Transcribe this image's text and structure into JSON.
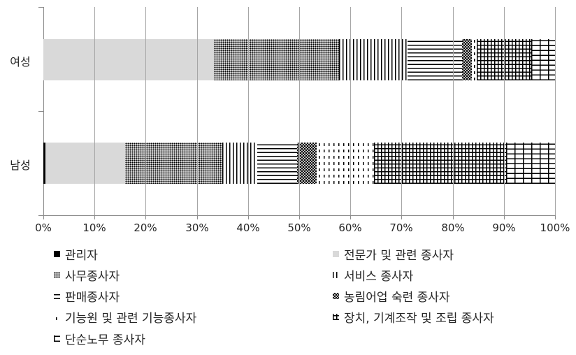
{
  "chart_data": {
    "type": "bar",
    "orientation": "horizontal",
    "stacked": "percent",
    "categories": [
      "여성",
      "남성"
    ],
    "xlabel": "",
    "ylabel": "",
    "xlim": [
      0,
      100
    ],
    "x_ticks": [
      "0%",
      "10%",
      "20%",
      "30%",
      "40%",
      "50%",
      "60%",
      "70%",
      "80%",
      "90%",
      "100%"
    ],
    "grid": true,
    "legend_position": "bottom",
    "series": [
      {
        "name": "관리자",
        "pattern": "solid-black",
        "values": [
          0.0,
          0.4
        ]
      },
      {
        "name": "전문가 및 관련 종사자",
        "pattern": "solid-gray",
        "values": [
          33.3,
          15.6
        ]
      },
      {
        "name": "사무종사자",
        "pattern": "dots",
        "values": [
          24.5,
          19.0
        ]
      },
      {
        "name": "서비스 종사자",
        "pattern": "vertical-lines",
        "values": [
          13.4,
          6.8
        ]
      },
      {
        "name": "판매종사자",
        "pattern": "horizontal-lines",
        "values": [
          10.6,
          7.8
        ]
      },
      {
        "name": "농림어업 숙련 종사자",
        "pattern": "checker",
        "values": [
          1.9,
          3.8
        ]
      },
      {
        "name": "기능원 및 관련 기능종사자",
        "pattern": "dashes",
        "values": [
          1.0,
          11.2
        ]
      },
      {
        "name": "장치, 기계조작 및 조립 종사자",
        "pattern": "grid",
        "values": [
          10.7,
          25.8
        ]
      },
      {
        "name": "단순노무 종사자",
        "pattern": "brick",
        "values": [
          4.6,
          9.6
        ]
      }
    ]
  },
  "axis": {
    "y_labels": [
      "여성",
      "남성"
    ],
    "x_labels": [
      "0%",
      "10%",
      "20%",
      "30%",
      "40%",
      "50%",
      "60%",
      "70%",
      "80%",
      "90%",
      "100%"
    ]
  },
  "legend": {
    "items": [
      {
        "label": "관리자"
      },
      {
        "label": "전문가 및 관련 종사자"
      },
      {
        "label": "사무종사자"
      },
      {
        "label": "서비스 종사자"
      },
      {
        "label": "판매종사자"
      },
      {
        "label": "농림어업 숙련 종사자"
      },
      {
        "label": "기능원 및 관련 기능종사자"
      },
      {
        "label": "장치, 기계조작 및 조립 종사자"
      },
      {
        "label": "단순노무 종사자"
      }
    ]
  }
}
